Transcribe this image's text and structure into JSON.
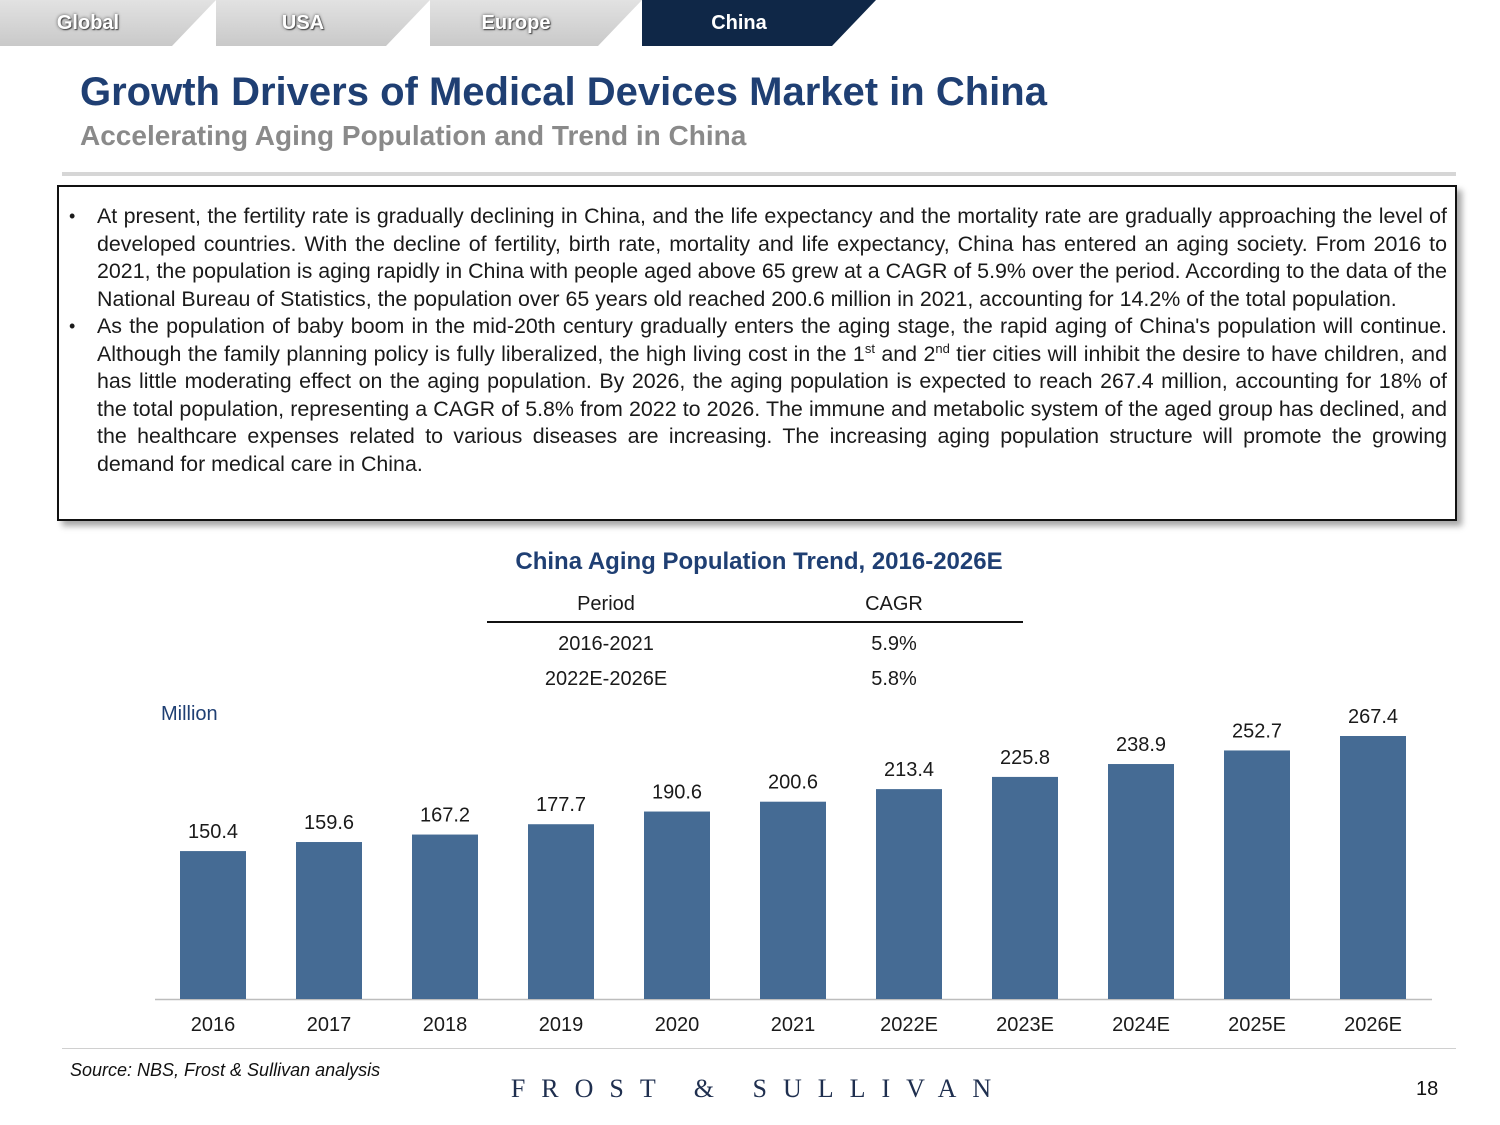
{
  "tabs": [
    {
      "label": "Global",
      "active": false
    },
    {
      "label": "USA",
      "active": false
    },
    {
      "label": "Europe",
      "active": false
    },
    {
      "label": "China",
      "active": true
    }
  ],
  "header": {
    "title": "Growth Drivers of Medical Devices Market in China",
    "subtitle": "Accelerating Aging Population and Trend in China"
  },
  "bullets": {
    "b1": "At present, the fertility rate is gradually declining in China, and the life expectancy and the mortality rate are gradually approaching the level of developed countries. With the decline of fertility, birth rate, mortality and life expectancy, China has entered an aging society. From 2016 to 2021, the population is aging rapidly in China with people aged above 65 grew at a CAGR of 5.9% over the period. According to the data of the National Bureau of Statistics, the population over 65 years old reached 200.6 million in 2021, accounting for 14.2% of the total population.",
    "b2_part1": "As the population of baby boom in the mid-20th century gradually enters the aging stage, the rapid aging of China's population will continue. Although the family planning policy is fully liberalized, the high living cost in the 1",
    "b2_sup1": "st",
    "b2_part2": " and 2",
    "b2_sup2": "nd",
    "b2_part3": " tier cities will inhibit the desire to have children, and has little moderating effect on the aging population. By 2026, the aging population is expected to reach 267.4 million, accounting for 18% of the total population, representing a CAGR of 5.8% from 2022 to 2026. The immune and metabolic system of the aged group has declined, and the healthcare expenses related to various diseases are increasing. The increasing aging population structure will promote the growing demand for medical care in China."
  },
  "cagr_table": {
    "col_period": "Period",
    "col_cagr": "CAGR",
    "rows": [
      {
        "period": "2016-2021",
        "cagr": "5.9%"
      },
      {
        "period": "2022E-2026E",
        "cagr": "5.8%"
      }
    ]
  },
  "chart_data": {
    "type": "bar",
    "title": "China Aging Population Trend, 2016-2026E",
    "ylabel": "Million",
    "xlabel": "",
    "categories": [
      "2016",
      "2017",
      "2018",
      "2019",
      "2020",
      "2021",
      "2022E",
      "2023E",
      "2024E",
      "2025E",
      "2026E"
    ],
    "values": [
      150.4,
      159.6,
      167.2,
      177.7,
      190.6,
      200.6,
      213.4,
      225.8,
      238.9,
      252.7,
      267.4
    ],
    "value_labels": [
      "150.4",
      "159.6",
      "167.2",
      "177.7",
      "190.6",
      "200.6",
      "213.4",
      "225.8",
      "238.9",
      "252.7",
      "267.4"
    ],
    "ylim": [
      0,
      267.4
    ],
    "grid": false,
    "bar_color": "#456b94"
  },
  "footer": {
    "source": "Source: NBS,  Frost & Sullivan analysis",
    "logo": "FROST & SULLIVAN",
    "page": "18"
  }
}
